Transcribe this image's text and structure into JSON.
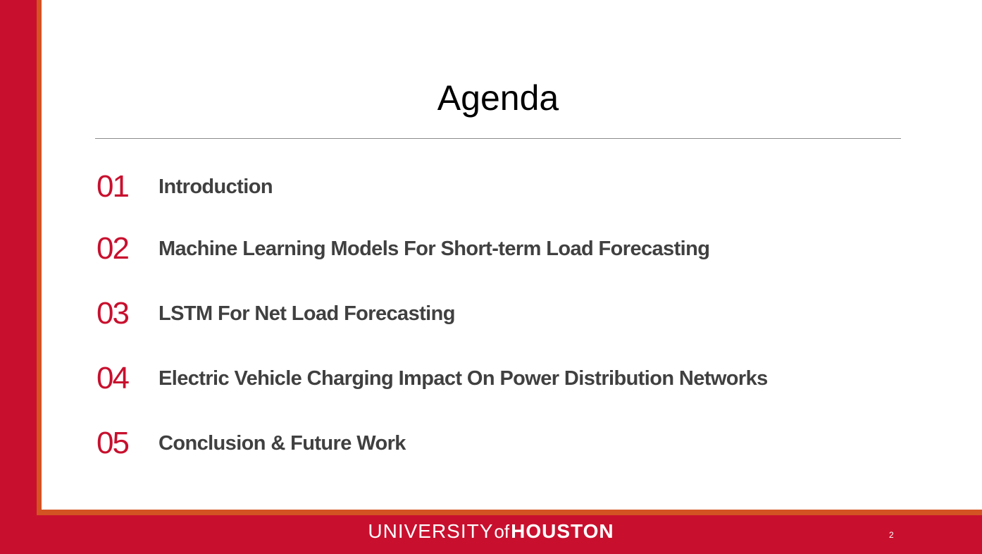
{
  "slide": {
    "title": "Agenda",
    "page_number": "2"
  },
  "agenda": {
    "items": [
      {
        "number": "01",
        "label": "Introduction"
      },
      {
        "number": "02",
        "label": "Machine Learning Models For Short-term Load Forecasting"
      },
      {
        "number": "03",
        "label": "LSTM For Net Load Forecasting"
      },
      {
        "number": "04",
        "label": "Electric Vehicle Charging Impact On Power Distribution Networks"
      },
      {
        "number": "05",
        "label": "Conclusion & Future Work"
      }
    ]
  },
  "footer": {
    "logo_university": "UNIVERSITY",
    "logo_of": "of",
    "logo_houston": "HOUSTON"
  },
  "colors": {
    "brand_red": "#c8102e",
    "accent_orange": "#d35322",
    "text_gray": "#404040"
  }
}
